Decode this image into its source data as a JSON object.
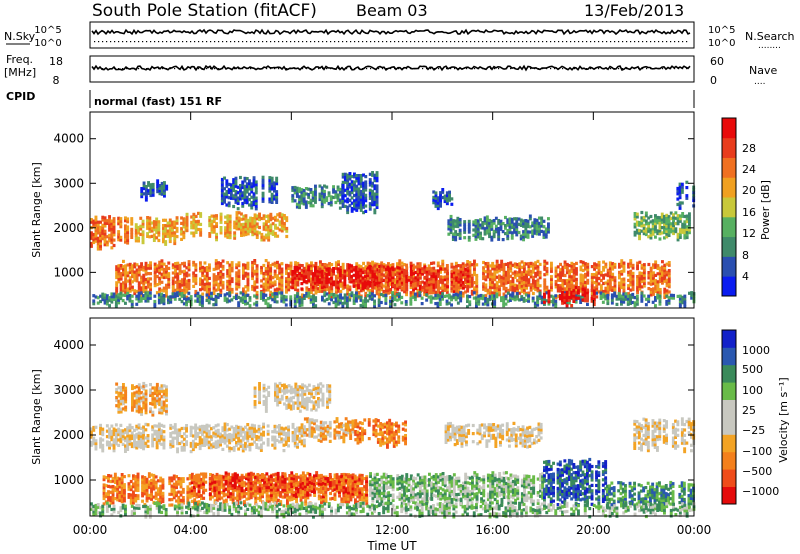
{
  "header": {
    "station": "South Pole Station (fitACF)",
    "beam": "Beam 03",
    "date": "13/Feb/2013"
  },
  "panels": {
    "nsky": {
      "label": "N.Sky",
      "ticks": [
        "10^5",
        "10^0"
      ],
      "right_label": "N.Search",
      "right_ticks": [
        "10^5",
        "10^0"
      ],
      "right_marker": "........"
    },
    "freq": {
      "label_line1": "Freq.",
      "label_line2": "[MHz]",
      "ticks": [
        "18",
        "8"
      ],
      "right_label": "Nave",
      "right_ticks": [
        "60",
        "0"
      ],
      "right_marker": "...."
    },
    "cpid": {
      "label": "CPID",
      "text": "normal (fast) 151 RF"
    }
  },
  "colors": {
    "power_scale": [
      "#0a1cf0",
      "#2a4fb0",
      "#3f8a6a",
      "#57b061",
      "#c8c83a",
      "#f0a020",
      "#f07020",
      "#e83c1c",
      "#e80a0a"
    ],
    "velocity_scale": [
      "#e50b0b",
      "#ef4c1a",
      "#f4801c",
      "#f3a324",
      "#c8c8c0",
      "#c8c8c0",
      "#69bb48",
      "#3a8a5a",
      "#2a58b0",
      "#1221c9"
    ]
  },
  "chart_data": [
    {
      "type": "heatmap",
      "name": "power",
      "xlabel": "Time UT",
      "ylabel": "Slant Range [km]",
      "x_ticks": [
        "00:00",
        "04:00",
        "08:00",
        "12:00",
        "16:00",
        "20:00",
        "00:00"
      ],
      "x_range_hours": [
        0,
        24
      ],
      "yticks": [
        1000,
        2000,
        3000,
        4000
      ],
      "ylim": [
        200,
        4600
      ],
      "colorbar_label": "Power [dB]",
      "colorbar_ticks": [
        "28",
        "24",
        "20",
        "16",
        "12",
        "8",
        "4"
      ],
      "bands": [
        {
          "t0": 0.0,
          "t1": 1.6,
          "r0": 1600,
          "r1": 2200,
          "level": 6
        },
        {
          "t0": 1.6,
          "t1": 3.8,
          "r0": 1700,
          "r1": 2200,
          "level": 5
        },
        {
          "t0": 3.8,
          "t1": 7.8,
          "r0": 1800,
          "r1": 2300,
          "level": 5
        },
        {
          "t0": 2.0,
          "t1": 3.0,
          "r0": 2700,
          "r1": 3000,
          "level": 1
        },
        {
          "t0": 5.2,
          "t1": 7.4,
          "r0": 2500,
          "r1": 3100,
          "level": 1
        },
        {
          "t0": 8.0,
          "t1": 10.0,
          "r0": 2500,
          "r1": 2900,
          "level": 2
        },
        {
          "t0": 10.0,
          "t1": 11.4,
          "r0": 2400,
          "r1": 3200,
          "level": 1
        },
        {
          "t0": 13.6,
          "t1": 14.4,
          "r0": 2500,
          "r1": 2800,
          "level": 1
        },
        {
          "t0": 14.2,
          "t1": 18.2,
          "r0": 1800,
          "r1": 2200,
          "level": 2
        },
        {
          "t0": 21.6,
          "t1": 23.8,
          "r0": 1800,
          "r1": 2300,
          "level": 3
        },
        {
          "t0": 23.3,
          "t1": 24.0,
          "r0": 2500,
          "r1": 3000,
          "level": 1
        },
        {
          "t0": 1.0,
          "t1": 23.0,
          "r0": 500,
          "r1": 1200,
          "level": 6
        },
        {
          "t0": 8.0,
          "t1": 12.0,
          "r0": 700,
          "r1": 1100,
          "level": 8
        },
        {
          "t0": 11.0,
          "t1": 15.0,
          "r0": 600,
          "r1": 1100,
          "level": 7
        },
        {
          "t0": 0.0,
          "t1": 24.0,
          "r0": 300,
          "r1": 500,
          "level": 2
        },
        {
          "t0": 18.0,
          "t1": 20.0,
          "r0": 300,
          "r1": 600,
          "level": 8
        }
      ]
    },
    {
      "type": "heatmap",
      "name": "velocity",
      "xlabel": "Time UT",
      "ylabel": "Slant Range [km]",
      "x_ticks": [
        "00:00",
        "04:00",
        "08:00",
        "12:00",
        "16:00",
        "20:00",
        "00:00"
      ],
      "x_range_hours": [
        0,
        24
      ],
      "yticks": [
        1000,
        2000,
        3000,
        4000
      ],
      "ylim": [
        200,
        4600
      ],
      "colorbar_label": "Velocity [m s⁻¹]",
      "colorbar_ticks": [
        "1000",
        "500",
        "100",
        "25",
        "−25",
        "−100",
        "−500",
        "−1000"
      ],
      "bands": [
        {
          "t0": 0.0,
          "t1": 8.5,
          "r0": 1700,
          "r1": 2200,
          "level": 4
        },
        {
          "t0": 8.5,
          "t1": 10.5,
          "r0": 1900,
          "r1": 2300,
          "level": 3
        },
        {
          "t0": 10.5,
          "t1": 12.5,
          "r0": 1800,
          "r1": 2300,
          "level": 2
        },
        {
          "t0": 1.0,
          "t1": 3.0,
          "r0": 2500,
          "r1": 3100,
          "level": 3
        },
        {
          "t0": 6.5,
          "t1": 9.5,
          "r0": 2600,
          "r1": 3100,
          "level": 4
        },
        {
          "t0": 14.0,
          "t1": 18.0,
          "r0": 1800,
          "r1": 2200,
          "level": 4
        },
        {
          "t0": 21.5,
          "t1": 24.0,
          "r0": 1700,
          "r1": 2300,
          "level": 4
        },
        {
          "t0": 0.5,
          "t1": 11.0,
          "r0": 500,
          "r1": 1100,
          "level": 2
        },
        {
          "t0": 4.0,
          "t1": 11.0,
          "r0": 700,
          "r1": 1100,
          "level": 1
        },
        {
          "t0": 11.0,
          "t1": 18.0,
          "r0": 500,
          "r1": 1100,
          "level": 6
        },
        {
          "t0": 18.0,
          "t1": 20.5,
          "r0": 500,
          "r1": 1400,
          "level": 8
        },
        {
          "t0": 20.5,
          "t1": 24.0,
          "r0": 400,
          "r1": 900,
          "level": 7
        },
        {
          "t0": 0.0,
          "t1": 24.0,
          "r0": 250,
          "r1": 450,
          "level": 6
        }
      ]
    }
  ]
}
